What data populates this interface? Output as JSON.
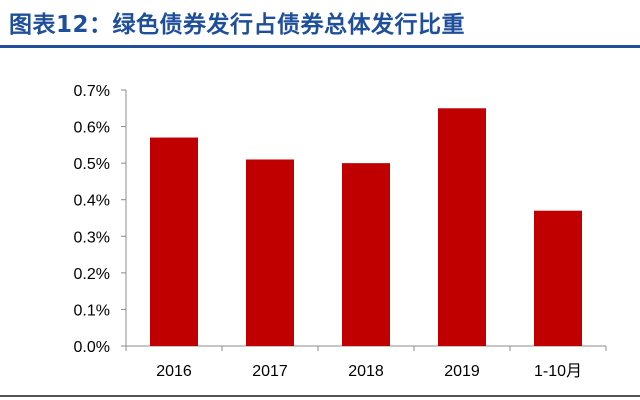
{
  "figure": {
    "title": "图表12：绿色债券发行占债券总体发行比重"
  },
  "colors": {
    "title": "#1f4e9a",
    "bar": "#c00000",
    "axis": "#8c8c8c"
  },
  "chart_data": {
    "type": "bar",
    "title": "",
    "xlabel": "",
    "ylabel": "",
    "categories": [
      "2016",
      "2017",
      "2018",
      "2019",
      "1-10月"
    ],
    "values": [
      0.57,
      0.51,
      0.5,
      0.65,
      0.37
    ],
    "y_unit": "%",
    "ylim": [
      0.0,
      0.7
    ],
    "y_ticks": [
      "0.0%",
      "0.1%",
      "0.2%",
      "0.3%",
      "0.4%",
      "0.5%",
      "0.6%",
      "0.7%"
    ],
    "grid": false,
    "legend": "none"
  }
}
